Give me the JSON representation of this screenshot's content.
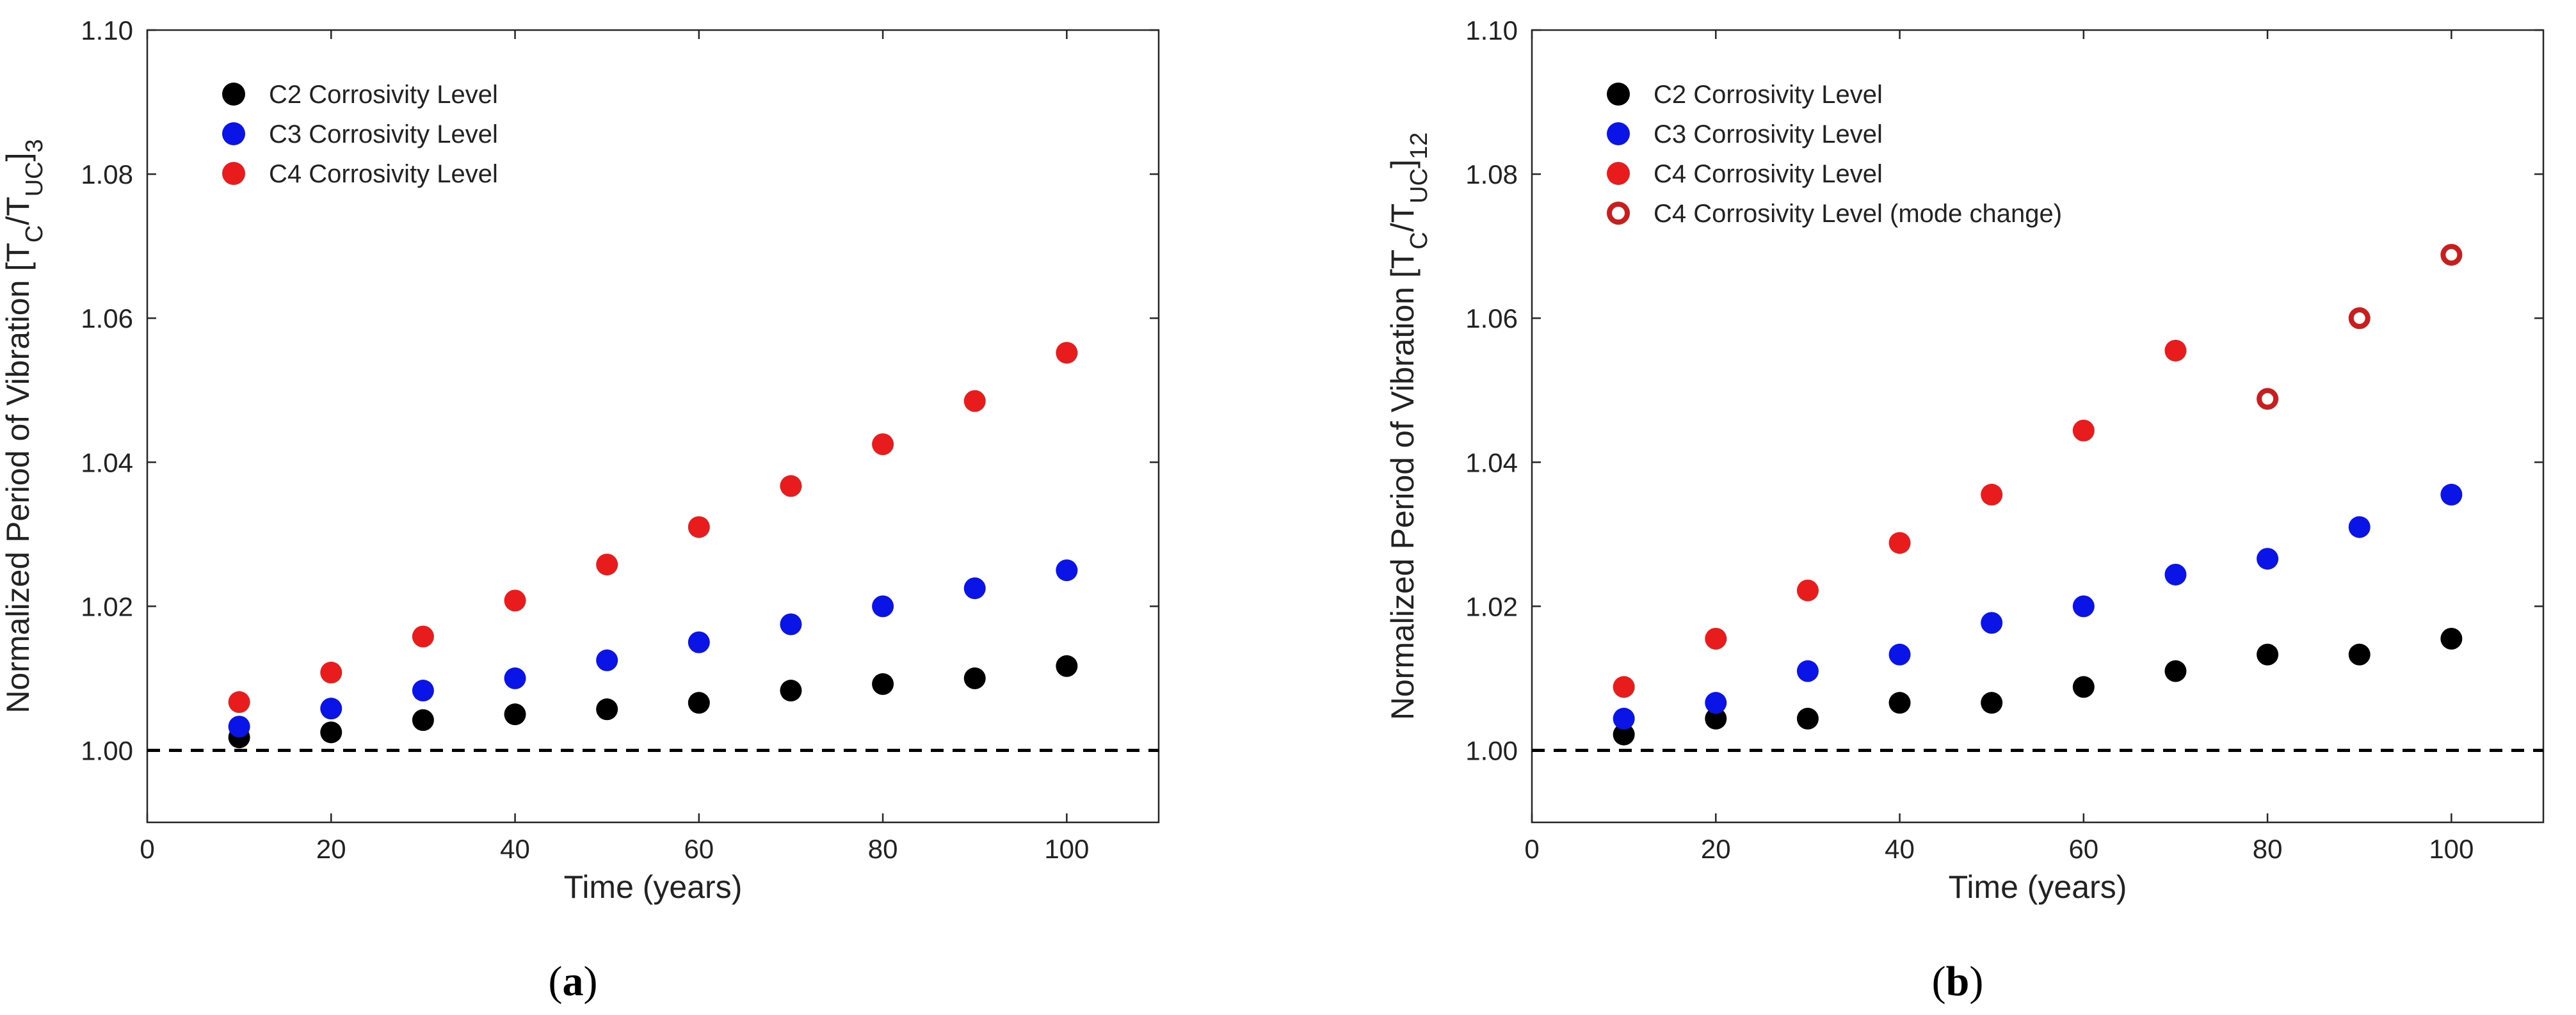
{
  "chart_data": [
    {
      "type": "scatter",
      "panel": "(a)",
      "caption": {
        "open": "(",
        "letter": "a",
        "close": ")"
      },
      "xlabel": "Time (years)",
      "ylabel": {
        "main": "Normalized Period of Vibration [T",
        "sub1": "C",
        "slash": "/T",
        "sub2": "UC",
        "close": "]",
        "sub3": "3"
      },
      "xlim": [
        0,
        110
      ],
      "ylim": [
        0.99,
        1.1
      ],
      "x_ticks": [
        "0",
        "20",
        "40",
        "60",
        "80",
        "100"
      ],
      "x_tick_values": [
        0,
        20,
        40,
        60,
        80,
        100
      ],
      "y_ticks": [
        "1.00",
        "1.02",
        "1.04",
        "1.06",
        "1.08",
        "1.10"
      ],
      "y_tick_values": [
        1.0,
        1.02,
        1.04,
        1.06,
        1.08,
        1.1
      ],
      "reference_line": {
        "y": 1.0,
        "style": "dashed",
        "color": "#000000"
      },
      "legend_position": "top-left",
      "series": [
        {
          "name": "C2 Corrosivity Level",
          "color": "#000000",
          "marker": "filled",
          "x": [
            10,
            20,
            30,
            40,
            50,
            60,
            70,
            80,
            90,
            100
          ],
          "y": [
            1.0018,
            1.0025,
            1.0042,
            1.005,
            1.0057,
            1.0066,
            1.0083,
            1.0092,
            1.01,
            1.0117
          ]
        },
        {
          "name": "C3 Corrosivity Level",
          "color": "#0a14e6",
          "marker": "filled",
          "x": [
            10,
            20,
            30,
            40,
            50,
            60,
            70,
            80,
            90,
            100
          ],
          "y": [
            1.0033,
            1.0058,
            1.0083,
            1.01,
            1.0125,
            1.015,
            1.0175,
            1.02,
            1.0225,
            1.025
          ]
        },
        {
          "name": "C4 Corrosivity Level",
          "color": "#e81c1c",
          "marker": "filled",
          "x": [
            10,
            20,
            30,
            40,
            50,
            60,
            70,
            80,
            90,
            100
          ],
          "y": [
            1.0067,
            1.0108,
            1.0158,
            1.0208,
            1.0258,
            1.031,
            1.0367,
            1.0425,
            1.0485,
            1.0552
          ]
        }
      ]
    },
    {
      "type": "scatter",
      "panel": "(b)",
      "caption": {
        "open": "(",
        "letter": "b",
        "close": ")"
      },
      "xlabel": "Time (years)",
      "ylabel": {
        "main": "Normalized Period of Vibration [T",
        "sub1": "C",
        "slash": "/T",
        "sub2": "UC",
        "close": "]",
        "sub3": "12"
      },
      "xlim": [
        0,
        110
      ],
      "ylim": [
        0.99,
        1.1
      ],
      "x_ticks": [
        "0",
        "20",
        "40",
        "60",
        "80",
        "100"
      ],
      "x_tick_values": [
        0,
        20,
        40,
        60,
        80,
        100
      ],
      "y_ticks": [
        "1.00",
        "1.02",
        "1.04",
        "1.06",
        "1.08",
        "1.10"
      ],
      "y_tick_values": [
        1.0,
        1.02,
        1.04,
        1.06,
        1.08,
        1.1
      ],
      "reference_line": {
        "y": 1.0,
        "style": "dashed",
        "color": "#000000"
      },
      "legend_position": "top-left",
      "series": [
        {
          "name": "C2 Corrosivity Level",
          "color": "#000000",
          "marker": "filled",
          "x": [
            10,
            20,
            30,
            40,
            50,
            60,
            70,
            80,
            90,
            100
          ],
          "y": [
            1.0022,
            1.0044,
            1.0044,
            1.0066,
            1.0066,
            1.0088,
            1.011,
            1.0133,
            1.0133,
            1.0155
          ]
        },
        {
          "name": "C3 Corrosivity Level",
          "color": "#0a14e6",
          "marker": "filled",
          "x": [
            10,
            20,
            30,
            40,
            50,
            60,
            70,
            80,
            90,
            100
          ],
          "y": [
            1.0044,
            1.0066,
            1.011,
            1.0133,
            1.0177,
            1.02,
            1.0244,
            1.0266,
            1.031,
            1.0355
          ]
        },
        {
          "name": "C4 Corrosivity Level",
          "color": "#e81c1c",
          "marker": "filled",
          "x": [
            10,
            20,
            30,
            40,
            50,
            60,
            70
          ],
          "y": [
            1.0088,
            1.0155,
            1.0222,
            1.0288,
            1.0355,
            1.0444,
            1.0555
          ]
        },
        {
          "name": "C4 Corrosivity Level (mode change)",
          "color": "#c81e1e",
          "marker": "open",
          "x": [
            80,
            90,
            100
          ],
          "y": [
            1.0488,
            1.06,
            1.0688
          ]
        }
      ]
    }
  ]
}
